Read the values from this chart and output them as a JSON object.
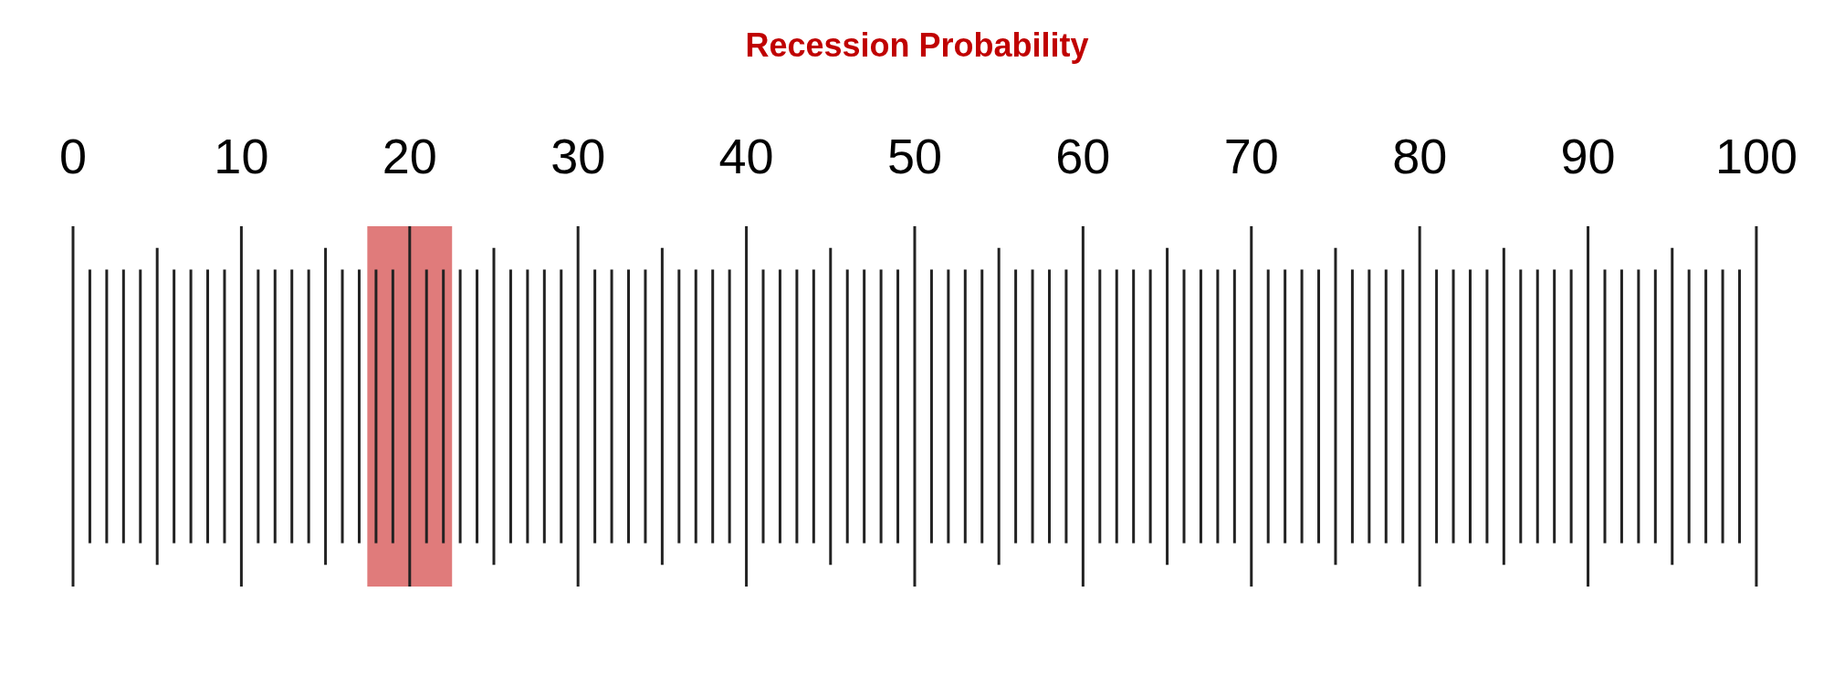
{
  "chart_data": {
    "type": "bar",
    "title": "Recession Probability",
    "orientation": "horizontal",
    "categories": [
      null
    ],
    "base": [
      17.5
    ],
    "values": [
      5
    ],
    "color": "#e07b7b",
    "grid": "x",
    "xlim": [
      0,
      100
    ],
    "xticks": [
      0,
      {
        "value": 1,
        "label": null
      },
      {
        "value": 2,
        "label": null
      },
      {
        "value": 3,
        "label": null
      },
      {
        "value": 4,
        "label": null
      },
      {
        "value": 5,
        "label": null
      },
      {
        "value": 6,
        "label": null
      },
      {
        "value": 7,
        "label": null
      },
      {
        "value": 8,
        "label": null
      },
      {
        "value": 9,
        "label": null
      },
      10,
      {
        "value": 11,
        "label": null
      },
      {
        "value": 12,
        "label": null
      },
      {
        "value": 13,
        "label": null
      },
      {
        "value": 14,
        "label": null
      },
      {
        "value": 15,
        "label": null
      },
      {
        "value": 16,
        "label": null
      },
      {
        "value": 17,
        "label": null
      },
      {
        "value": 18,
        "label": null
      },
      {
        "value": 19,
        "label": null
      },
      20,
      {
        "value": 21,
        "label": null
      },
      {
        "value": 22,
        "label": null
      },
      {
        "value": 23,
        "label": null
      },
      {
        "value": 24,
        "label": null
      },
      {
        "value": 25,
        "label": null
      },
      {
        "value": 26,
        "label": null
      },
      {
        "value": 27,
        "label": null
      },
      {
        "value": 28,
        "label": null
      },
      {
        "value": 29,
        "label": null
      },
      30,
      {
        "value": 31,
        "label": null
      },
      {
        "value": 32,
        "label": null
      },
      {
        "value": 33,
        "label": null
      },
      {
        "value": 34,
        "label": null
      },
      {
        "value": 35,
        "label": null
      },
      {
        "value": 36,
        "label": null
      },
      {
        "value": 37,
        "label": null
      },
      {
        "value": 38,
        "label": null
      },
      {
        "value": 39,
        "label": null
      },
      40,
      {
        "value": 41,
        "label": null
      },
      {
        "value": 42,
        "label": null
      },
      {
        "value": 43,
        "label": null
      },
      {
        "value": 44,
        "label": null
      },
      {
        "value": 45,
        "label": null
      },
      {
        "value": 46,
        "label": null
      },
      {
        "value": 47,
        "label": null
      },
      {
        "value": 48,
        "label": null
      },
      {
        "value": 49,
        "label": null
      },
      50,
      {
        "value": 51,
        "label": null
      },
      {
        "value": 52,
        "label": null
      },
      {
        "value": 53,
        "label": null
      },
      {
        "value": 54,
        "label": null
      },
      {
        "value": 55,
        "label": null
      },
      {
        "value": 56,
        "label": null
      },
      {
        "value": 57,
        "label": null
      },
      {
        "value": 58,
        "label": null
      },
      {
        "value": 59,
        "label": null
      },
      60,
      {
        "value": 61,
        "label": null
      },
      {
        "value": 62,
        "label": null
      },
      {
        "value": 63,
        "label": null
      },
      {
        "value": 64,
        "label": null
      },
      {
        "value": 65,
        "label": null
      },
      {
        "value": 66,
        "label": null
      },
      {
        "value": 67,
        "label": null
      },
      {
        "value": 68,
        "label": null
      },
      {
        "value": 69,
        "label": null
      },
      70,
      {
        "value": 71,
        "label": null
      },
      {
        "value": 72,
        "label": null
      },
      {
        "value": 73,
        "label": null
      },
      {
        "value": 74,
        "label": null
      },
      {
        "value": 75,
        "label": null
      },
      {
        "value": 76,
        "label": null
      },
      {
        "value": 77,
        "label": null
      },
      {
        "value": 78,
        "label": null
      },
      {
        "value": 79,
        "label": null
      },
      80,
      {
        "value": 81,
        "label": null
      },
      {
        "value": 82,
        "label": null
      },
      {
        "value": 83,
        "label": null
      },
      {
        "value": 84,
        "label": null
      },
      {
        "value": 85,
        "label": null
      },
      {
        "value": 86,
        "label": null
      },
      {
        "value": 87,
        "label": null
      },
      {
        "value": 88,
        "label": null
      },
      {
        "value": 89,
        "label": null
      },
      90,
      {
        "value": 91,
        "label": null
      },
      {
        "value": 92,
        "label": null
      },
      {
        "value": 93,
        "label": null
      },
      {
        "value": 94,
        "label": null
      },
      {
        "value": 95,
        "label": null
      },
      {
        "value": 96,
        "label": null
      },
      {
        "value": 97,
        "label": null
      },
      {
        "value": 98,
        "label": null
      },
      {
        "value": 99,
        "label": null
      },
      100
    ]
  }
}
